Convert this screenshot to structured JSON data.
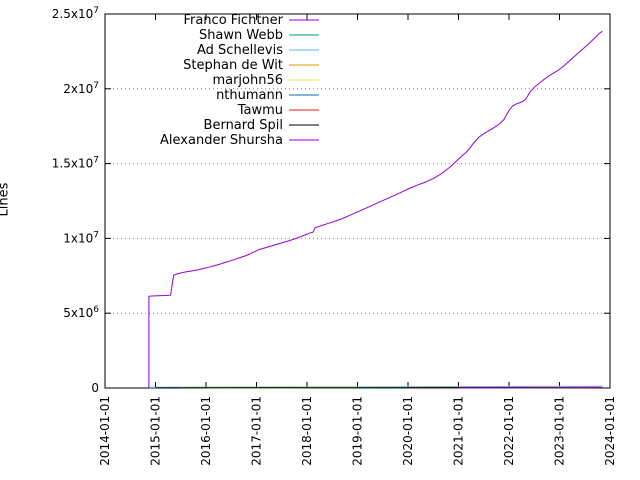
{
  "page": {
    "background": "#ffffff"
  },
  "chart_data": {
    "type": "line",
    "title": "",
    "xlabel": "",
    "ylabel": "Lines",
    "xlim": [
      2014,
      2024
    ],
    "ylim": [
      0,
      25000000
    ],
    "grid": "horizontal-dotted",
    "legend_position": "top-inside-left",
    "x_ticks": [
      {
        "t": 2014,
        "label": "2014-01-01"
      },
      {
        "t": 2015,
        "label": "2015-01-01"
      },
      {
        "t": 2016,
        "label": "2016-01-01"
      },
      {
        "t": 2017,
        "label": "2017-01-01"
      },
      {
        "t": 2018,
        "label": "2018-01-01"
      },
      {
        "t": 2019,
        "label": "2019-01-01"
      },
      {
        "t": 2020,
        "label": "2020-01-01"
      },
      {
        "t": 2021,
        "label": "2021-01-01"
      },
      {
        "t": 2022,
        "label": "2022-01-01"
      },
      {
        "t": 2023,
        "label": "2023-01-01"
      },
      {
        "t": 2024,
        "label": "2024-01-01"
      }
    ],
    "y_ticks": [
      {
        "v": 0,
        "label": "0"
      },
      {
        "v": 5000000,
        "label": "5x10^6"
      },
      {
        "v": 10000000,
        "label": "1x10^7"
      },
      {
        "v": 15000000,
        "label": "1.5x10^7"
      },
      {
        "v": 20000000,
        "label": "2x10^7"
      },
      {
        "v": 25000000,
        "label": "2.5x10^7"
      }
    ],
    "series": [
      {
        "name": "Franco Fichtner",
        "color": "#9400d3",
        "points": [
          [
            2014.87,
            0
          ],
          [
            2014.87,
            6130000
          ],
          [
            2014.92,
            6150000
          ],
          [
            2015.05,
            6170000
          ],
          [
            2015.2,
            6185000
          ],
          [
            2015.3,
            6200000
          ],
          [
            2015.33,
            6950000
          ],
          [
            2015.36,
            7550000
          ],
          [
            2015.45,
            7650000
          ],
          [
            2015.55,
            7730000
          ],
          [
            2015.65,
            7790000
          ],
          [
            2015.75,
            7850000
          ],
          [
            2015.85,
            7910000
          ],
          [
            2015.95,
            7990000
          ],
          [
            2016.05,
            8070000
          ],
          [
            2016.15,
            8160000
          ],
          [
            2016.25,
            8250000
          ],
          [
            2016.35,
            8360000
          ],
          [
            2016.45,
            8470000
          ],
          [
            2016.55,
            8570000
          ],
          [
            2016.65,
            8690000
          ],
          [
            2016.75,
            8800000
          ],
          [
            2016.85,
            8930000
          ],
          [
            2016.95,
            9100000
          ],
          [
            2017.05,
            9250000
          ],
          [
            2017.15,
            9350000
          ],
          [
            2017.25,
            9450000
          ],
          [
            2017.35,
            9550000
          ],
          [
            2017.45,
            9650000
          ],
          [
            2017.55,
            9750000
          ],
          [
            2017.65,
            9850000
          ],
          [
            2017.75,
            9960000
          ],
          [
            2017.85,
            10080000
          ],
          [
            2017.95,
            10220000
          ],
          [
            2018.05,
            10350000
          ],
          [
            2018.12,
            10420000
          ],
          [
            2018.16,
            10700000
          ],
          [
            2018.22,
            10780000
          ],
          [
            2018.3,
            10870000
          ],
          [
            2018.4,
            10980000
          ],
          [
            2018.5,
            11080000
          ],
          [
            2018.6,
            11200000
          ],
          [
            2018.7,
            11330000
          ],
          [
            2018.8,
            11470000
          ],
          [
            2018.9,
            11620000
          ],
          [
            2019.0,
            11770000
          ],
          [
            2019.1,
            11920000
          ],
          [
            2019.2,
            12070000
          ],
          [
            2019.3,
            12220000
          ],
          [
            2019.4,
            12380000
          ],
          [
            2019.5,
            12530000
          ],
          [
            2019.6,
            12680000
          ],
          [
            2019.7,
            12830000
          ],
          [
            2019.8,
            12980000
          ],
          [
            2019.9,
            13140000
          ],
          [
            2020.0,
            13300000
          ],
          [
            2020.1,
            13440000
          ],
          [
            2020.2,
            13580000
          ],
          [
            2020.3,
            13700000
          ],
          [
            2020.4,
            13850000
          ],
          [
            2020.5,
            14000000
          ],
          [
            2020.6,
            14200000
          ],
          [
            2020.7,
            14430000
          ],
          [
            2020.8,
            14680000
          ],
          [
            2020.9,
            14980000
          ],
          [
            2021.0,
            15300000
          ],
          [
            2021.07,
            15520000
          ],
          [
            2021.15,
            15750000
          ],
          [
            2021.22,
            16000000
          ],
          [
            2021.3,
            16380000
          ],
          [
            2021.4,
            16750000
          ],
          [
            2021.5,
            17000000
          ],
          [
            2021.6,
            17200000
          ],
          [
            2021.7,
            17400000
          ],
          [
            2021.8,
            17620000
          ],
          [
            2021.9,
            17950000
          ],
          [
            2022.0,
            18550000
          ],
          [
            2022.07,
            18850000
          ],
          [
            2022.15,
            19000000
          ],
          [
            2022.25,
            19120000
          ],
          [
            2022.33,
            19300000
          ],
          [
            2022.42,
            19800000
          ],
          [
            2022.5,
            20100000
          ],
          [
            2022.6,
            20380000
          ],
          [
            2022.7,
            20650000
          ],
          [
            2022.8,
            20880000
          ],
          [
            2022.9,
            21080000
          ],
          [
            2023.0,
            21300000
          ],
          [
            2023.1,
            21580000
          ],
          [
            2023.2,
            21880000
          ],
          [
            2023.3,
            22180000
          ],
          [
            2023.4,
            22480000
          ],
          [
            2023.5,
            22780000
          ],
          [
            2023.6,
            23080000
          ],
          [
            2023.7,
            23400000
          ],
          [
            2023.78,
            23680000
          ],
          [
            2023.85,
            23850000
          ]
        ]
      },
      {
        "name": "Shawn Webb",
        "color": "#009e73",
        "points": [
          [
            2014.87,
            40000
          ],
          [
            2023.85,
            90000
          ]
        ]
      },
      {
        "name": "Ad Schellevis",
        "color": "#56b4e9",
        "points": [
          [
            2014.87,
            30000
          ],
          [
            2023.85,
            120000
          ]
        ]
      },
      {
        "name": "Stephan de Wit",
        "color": "#e69f00",
        "points": [
          [
            2015.5,
            10000
          ],
          [
            2023.85,
            60000
          ]
        ]
      },
      {
        "name": "marjohn56",
        "color": "#f0e442",
        "points": [
          [
            2016.0,
            8000
          ],
          [
            2023.85,
            50000
          ]
        ]
      },
      {
        "name": "nthumann",
        "color": "#0072b2",
        "points": [
          [
            2019.0,
            5000
          ],
          [
            2023.85,
            40000
          ]
        ]
      },
      {
        "name": "Tawmu",
        "color": "#e51e10",
        "points": [
          [
            2020.0,
            4000
          ],
          [
            2023.85,
            30000
          ]
        ]
      },
      {
        "name": "Bernard Spil",
        "color": "#000000",
        "points": [
          [
            2015.0,
            6000
          ],
          [
            2023.85,
            35000
          ]
        ]
      },
      {
        "name": "Alexander Shursha",
        "color": "#9400d3",
        "points": [
          [
            2021.0,
            3000
          ],
          [
            2023.85,
            25000
          ]
        ]
      }
    ]
  }
}
